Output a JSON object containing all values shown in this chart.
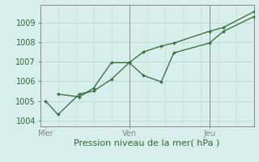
{
  "xlabel": "Pression niveau de la mer( hPa )",
  "bg_color": "#d8eeec",
  "line_color": "#2d6a2d",
  "grid_color": "#c0dcd8",
  "tick_label_color": "#2d6a2d",
  "axis_color": "#888888",
  "ylim": [
    1003.7,
    1009.9
  ],
  "xlim": [
    0,
    12
  ],
  "yticks": [
    1004,
    1005,
    1006,
    1007,
    1008,
    1009
  ],
  "xtick_positions": [
    0.3,
    5.0,
    9.5
  ],
  "xtick_labels": [
    "Mer",
    "Ven",
    "Jeu"
  ],
  "vlines": [
    5.0,
    9.5
  ],
  "line1_x": [
    0.3,
    1.0,
    2.2,
    3.0,
    4.0,
    5.0,
    5.8,
    6.8,
    7.5,
    9.5,
    10.3,
    12.0
  ],
  "line1_y": [
    1005.0,
    1004.3,
    1005.35,
    1005.5,
    1006.1,
    1006.95,
    1007.5,
    1007.8,
    1007.95,
    1008.55,
    1008.75,
    1009.55
  ],
  "line2_x": [
    1.0,
    2.2,
    3.0,
    4.0,
    5.0,
    5.8,
    6.8,
    7.5,
    9.5,
    10.3,
    12.0
  ],
  "line2_y": [
    1005.35,
    1005.2,
    1005.65,
    1006.95,
    1006.95,
    1006.3,
    1005.97,
    1007.45,
    1007.95,
    1008.55,
    1009.3
  ],
  "num_minor_xcols": 12,
  "xlabel_fontsize": 8,
  "ylabel_fontsize": 7,
  "marker_size": 3.0
}
